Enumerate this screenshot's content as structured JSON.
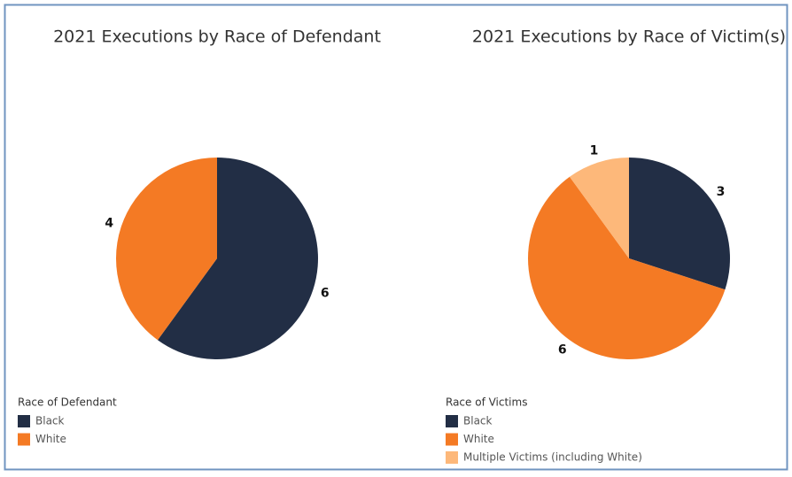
{
  "chart_data": [
    {
      "type": "pie",
      "title": "2021 Executions by Race of Defendant",
      "legend_title": "Race of Defendant",
      "categories": [
        "Black",
        "White"
      ],
      "values": [
        6,
        4
      ],
      "colors": [
        "#222e45",
        "#f47a24"
      ]
    },
    {
      "type": "pie",
      "title": "2021 Executions by Race of Victim(s)",
      "legend_title": "Race of Victims",
      "categories": [
        "Black",
        "White",
        "Multiple Victims (including White)"
      ],
      "values": [
        3,
        6,
        1
      ],
      "colors": [
        "#222e45",
        "#f47a24",
        "#fdb87a"
      ]
    }
  ]
}
